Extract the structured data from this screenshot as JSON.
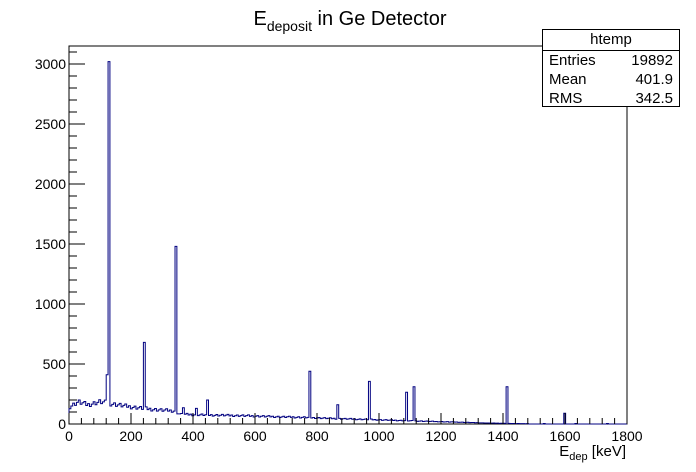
{
  "chart_data": {
    "type": "bar",
    "title": {
      "main": "E",
      "sub": "deposit",
      "rest": " in Ge Detector"
    },
    "xlabel": {
      "main": "E",
      "sub": "dep",
      "rest": " [keV]"
    },
    "ylabel": "",
    "xlim": [
      0,
      1800
    ],
    "ylim": [
      0,
      3150
    ],
    "x_ticks": [
      0,
      200,
      400,
      600,
      800,
      1000,
      1200,
      1400,
      1600,
      1800
    ],
    "y_ticks": [
      0,
      500,
      1000,
      1500,
      2000,
      2500,
      3000
    ],
    "bin_width": 6,
    "line_color": "#000080",
    "peaks": [
      {
        "x": 120,
        "y": 410
      },
      {
        "x": 126,
        "y": 3020
      },
      {
        "x": 243,
        "y": 680
      },
      {
        "x": 345,
        "y": 1480
      },
      {
        "x": 777,
        "y": 440
      },
      {
        "x": 967,
        "y": 355
      },
      {
        "x": 1086,
        "y": 265
      },
      {
        "x": 1113,
        "y": 310
      },
      {
        "x": 1410,
        "y": 310
      },
      {
        "x": 368,
        "y": 135
      },
      {
        "x": 412,
        "y": 130
      },
      {
        "x": 444,
        "y": 200
      },
      {
        "x": 864,
        "y": 160
      },
      {
        "x": 1600,
        "y": 90
      }
    ],
    "continuum": [
      {
        "x": 0,
        "y": 140
      },
      {
        "x": 30,
        "y": 185
      },
      {
        "x": 60,
        "y": 160
      },
      {
        "x": 100,
        "y": 185
      },
      {
        "x": 135,
        "y": 170
      },
      {
        "x": 180,
        "y": 150
      },
      {
        "x": 240,
        "y": 130
      },
      {
        "x": 300,
        "y": 115
      },
      {
        "x": 340,
        "y": 110
      },
      {
        "x": 360,
        "y": 80
      },
      {
        "x": 450,
        "y": 75
      },
      {
        "x": 550,
        "y": 70
      },
      {
        "x": 650,
        "y": 62
      },
      {
        "x": 760,
        "y": 55
      },
      {
        "x": 860,
        "y": 45
      },
      {
        "x": 960,
        "y": 38
      },
      {
        "x": 1060,
        "y": 30
      },
      {
        "x": 1160,
        "y": 22
      },
      {
        "x": 1260,
        "y": 15
      },
      {
        "x": 1350,
        "y": 8
      },
      {
        "x": 1460,
        "y": 3
      },
      {
        "x": 1800,
        "y": 0
      }
    ]
  },
  "stats": {
    "name": "htemp",
    "rows": [
      {
        "label": "Entries",
        "value": "19892"
      },
      {
        "label": "Mean",
        "value": "401.9"
      },
      {
        "label": "RMS",
        "value": "342.5"
      }
    ]
  }
}
